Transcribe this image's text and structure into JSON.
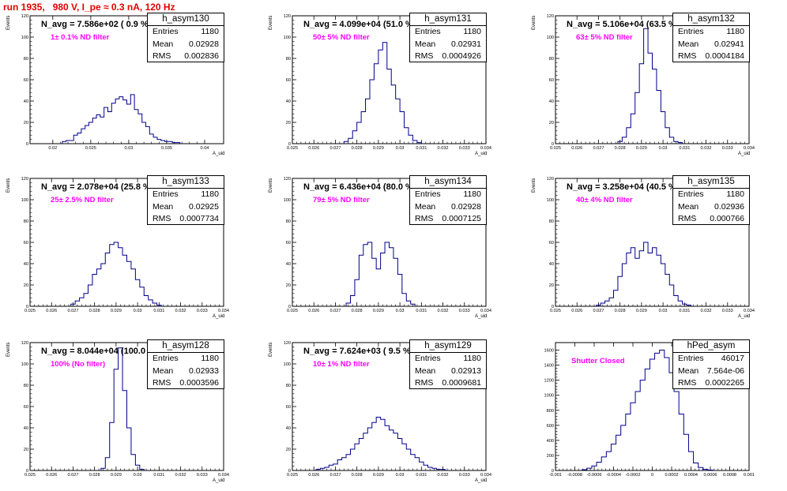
{
  "header": {
    "run_title": "run 1935,   980 V, I_pe ≈ 0.3 nA, 120 Hz"
  },
  "chart_data": [
    {
      "type": "bar",
      "hist_name": "h_asym130",
      "stats": {
        "entries": "1180",
        "mean": "0.02928",
        "rms": "0.002836"
      },
      "n_avg": "N_avg = 7.586e+02 ( 0.9 %)",
      "filter": "1± 0.1% ND filter",
      "filter_color": "#ff00ff",
      "xlabel": "A_uid",
      "ylabel": "Events",
      "xlim": [
        0.017,
        0.0425
      ],
      "ylim": [
        0,
        120
      ],
      "x_ticks": [
        0.02,
        0.025,
        0.03,
        0.035,
        0.04
      ],
      "x_tick_labels": [
        "0.02",
        "0.025",
        "0.03",
        "0.035",
        "0.04"
      ],
      "y_ticks": [
        0,
        20,
        40,
        60,
        80,
        100,
        120
      ],
      "y_tick_labels": [
        "0",
        "20",
        "40",
        "60",
        "80",
        "100",
        "120"
      ],
      "line_color": "#00008b",
      "x": [
        0.0215,
        0.022,
        0.0225,
        0.023,
        0.0235,
        0.024,
        0.0245,
        0.025,
        0.0255,
        0.026,
        0.0265,
        0.027,
        0.0275,
        0.028,
        0.0285,
        0.029,
        0.0295,
        0.03,
        0.0305,
        0.031,
        0.0315,
        0.032,
        0.0325,
        0.033,
        0.0335,
        0.034,
        0.0345,
        0.035,
        0.0355,
        0.036,
        0.0365
      ],
      "values": [
        2,
        3,
        3,
        8,
        10,
        14,
        17,
        20,
        24,
        27,
        25,
        34,
        30,
        38,
        42,
        44,
        41,
        37,
        46,
        32,
        28,
        20,
        16,
        9,
        6,
        4,
        3,
        2,
        2,
        1,
        1
      ]
    },
    {
      "type": "bar",
      "hist_name": "h_asym131",
      "stats": {
        "entries": "1180",
        "mean": "0.02931",
        "rms": "0.0004926"
      },
      "n_avg": "N_avg = 4.099e+04 (51.0 %)",
      "filter": "50± 5% ND filter",
      "filter_color": "#ff00ff",
      "xlabel": "A_uid",
      "ylabel": "Events",
      "xlim": [
        0.025,
        0.034
      ],
      "ylim": [
        0,
        120
      ],
      "x_ticks": [
        0.025,
        0.026,
        0.027,
        0.028,
        0.029,
        0.03,
        0.031,
        0.032,
        0.033,
        0.034
      ],
      "x_tick_labels": [
        "0.025",
        "0.026",
        "0.027",
        "0.028",
        "0.029",
        "0.03",
        "0.031",
        "0.032",
        "0.033",
        "0.034"
      ],
      "y_ticks": [
        0,
        20,
        40,
        60,
        80,
        100,
        120
      ],
      "y_tick_labels": [
        "0",
        "20",
        "40",
        "60",
        "80",
        "100",
        "120"
      ],
      "line_color": "#00008b",
      "x": [
        0.0275,
        0.0277,
        0.0279,
        0.0281,
        0.0283,
        0.0285,
        0.0287,
        0.0289,
        0.0291,
        0.0293,
        0.0295,
        0.0297,
        0.0299,
        0.0301,
        0.0303,
        0.0305,
        0.0307,
        0.0309
      ],
      "values": [
        2,
        5,
        12,
        20,
        30,
        42,
        60,
        75,
        88,
        95,
        70,
        55,
        42,
        30,
        15,
        8,
        3,
        1
      ]
    },
    {
      "type": "bar",
      "hist_name": "h_asym132",
      "stats": {
        "entries": "1180",
        "mean": "0.02941",
        "rms": "0.0004184"
      },
      "n_avg": "N_avg = 5.106e+04 (63.5 %)",
      "filter": "63± 5% ND filter",
      "filter_color": "#ff00ff",
      "xlabel": "A_uid",
      "ylabel": "Events",
      "xlim": [
        0.025,
        0.034
      ],
      "ylim": [
        0,
        120
      ],
      "x_ticks": [
        0.025,
        0.026,
        0.027,
        0.028,
        0.029,
        0.03,
        0.031,
        0.032,
        0.033,
        0.034
      ],
      "x_tick_labels": [
        "0.025",
        "0.026",
        "0.027",
        "0.028",
        "0.029",
        "0.03",
        "0.031",
        "0.032",
        "0.033",
        "0.034"
      ],
      "y_ticks": [
        0,
        20,
        40,
        60,
        80,
        100,
        120
      ],
      "y_tick_labels": [
        "0",
        "20",
        "40",
        "60",
        "80",
        "100",
        "120"
      ],
      "line_color": "#00008b",
      "x": [
        0.028,
        0.0282,
        0.0284,
        0.0286,
        0.0288,
        0.029,
        0.0292,
        0.0294,
        0.0296,
        0.0298,
        0.03,
        0.0302,
        0.0304,
        0.0306,
        0.0308
      ],
      "values": [
        2,
        6,
        15,
        28,
        48,
        75,
        108,
        85,
        70,
        50,
        30,
        15,
        6,
        2,
        1
      ]
    },
    {
      "type": "bar",
      "hist_name": "h_asym133",
      "stats": {
        "entries": "1180",
        "mean": "0.02925",
        "rms": "0.0007734"
      },
      "n_avg": "N_avg = 2.078e+04 (25.8 %)",
      "filter": "25± 2.5% ND filter",
      "filter_color": "#ff00ff",
      "xlabel": "A_uid",
      "ylabel": "Events",
      "xlim": [
        0.025,
        0.034
      ],
      "ylim": [
        0,
        120
      ],
      "x_ticks": [
        0.025,
        0.026,
        0.027,
        0.028,
        0.029,
        0.03,
        0.031,
        0.032,
        0.033,
        0.034
      ],
      "x_tick_labels": [
        "0.025",
        "0.026",
        "0.027",
        "0.028",
        "0.029",
        "0.03",
        "0.031",
        "0.032",
        "0.033",
        "0.034"
      ],
      "y_ticks": [
        0,
        20,
        40,
        60,
        80,
        100,
        120
      ],
      "y_tick_labels": [
        "0",
        "20",
        "40",
        "60",
        "80",
        "100",
        "120"
      ],
      "line_color": "#00008b",
      "x": [
        0.027,
        0.0272,
        0.0274,
        0.0276,
        0.0278,
        0.028,
        0.0282,
        0.0284,
        0.0286,
        0.0288,
        0.029,
        0.0292,
        0.0294,
        0.0296,
        0.0298,
        0.03,
        0.0302,
        0.0304,
        0.0306,
        0.0308,
        0.031
      ],
      "values": [
        2,
        5,
        8,
        12,
        20,
        30,
        35,
        40,
        50,
        58,
        60,
        55,
        48,
        42,
        35,
        25,
        18,
        10,
        6,
        3,
        1
      ]
    },
    {
      "type": "bar",
      "hist_name": "h_asym134",
      "stats": {
        "entries": "1180",
        "mean": "0.02928",
        "rms": "0.0007125"
      },
      "n_avg": "N_avg = 6.436e+04 (80.0 %)",
      "filter": "79± 5% ND filter",
      "filter_color": "#ff00ff",
      "xlabel": "A_uid",
      "ylabel": "Events",
      "xlim": [
        0.025,
        0.034
      ],
      "ylim": [
        0,
        120
      ],
      "x_ticks": [
        0.025,
        0.026,
        0.027,
        0.028,
        0.029,
        0.03,
        0.031,
        0.032,
        0.033,
        0.034
      ],
      "x_tick_labels": [
        "0.025",
        "0.026",
        "0.027",
        "0.028",
        "0.029",
        "0.03",
        "0.031",
        "0.032",
        "0.033",
        "0.034"
      ],
      "y_ticks": [
        0,
        20,
        40,
        60,
        80,
        100,
        120
      ],
      "y_tick_labels": [
        "0",
        "20",
        "40",
        "60",
        "80",
        "100",
        "120"
      ],
      "line_color": "#00008b",
      "x": [
        0.0276,
        0.0278,
        0.028,
        0.0282,
        0.0284,
        0.0286,
        0.0288,
        0.029,
        0.0292,
        0.0294,
        0.0296,
        0.0298,
        0.03,
        0.0302,
        0.0304,
        0.0306
      ],
      "values": [
        3,
        10,
        25,
        48,
        58,
        60,
        45,
        35,
        50,
        60,
        55,
        45,
        30,
        12,
        5,
        2
      ]
    },
    {
      "type": "bar",
      "hist_name": "h_asym135",
      "stats": {
        "entries": "1180",
        "mean": "0.02936",
        "rms": "0.000766"
      },
      "n_avg": "N_avg = 3.258e+04 (40.5 %)",
      "filter": "40± 4% ND filter",
      "filter_color": "#ff00ff",
      "xlabel": "A_uid",
      "ylabel": "Events",
      "xlim": [
        0.025,
        0.034
      ],
      "ylim": [
        0,
        120
      ],
      "x_ticks": [
        0.025,
        0.026,
        0.027,
        0.028,
        0.029,
        0.03,
        0.031,
        0.032,
        0.033,
        0.034
      ],
      "x_tick_labels": [
        "0.025",
        "0.026",
        "0.027",
        "0.028",
        "0.029",
        "0.03",
        "0.031",
        "0.032",
        "0.033",
        "0.034"
      ],
      "y_ticks": [
        0,
        20,
        40,
        60,
        80,
        100,
        120
      ],
      "y_tick_labels": [
        "0",
        "20",
        "40",
        "60",
        "80",
        "100",
        "120"
      ],
      "line_color": "#00008b",
      "x": [
        0.027,
        0.0272,
        0.0274,
        0.0276,
        0.0278,
        0.028,
        0.0282,
        0.0284,
        0.0286,
        0.0288,
        0.029,
        0.0292,
        0.0294,
        0.0296,
        0.0298,
        0.03,
        0.0302,
        0.0304,
        0.0306,
        0.0308,
        0.031,
        0.0312
      ],
      "values": [
        1,
        3,
        5,
        8,
        15,
        28,
        40,
        50,
        55,
        45,
        52,
        60,
        50,
        55,
        48,
        40,
        30,
        20,
        10,
        5,
        2,
        1
      ]
    },
    {
      "type": "bar",
      "hist_name": "h_asym128",
      "stats": {
        "entries": "1180",
        "mean": "0.02933",
        "rms": "0.0003596"
      },
      "n_avg": "N_avg = 8.044e+04 (100.0 %)",
      "filter": "100% (No filter)",
      "filter_color": "#ff00ff",
      "xlabel": "A_uid",
      "ylabel": "Events",
      "xlim": [
        0.025,
        0.034
      ],
      "ylim": [
        0,
        120
      ],
      "x_ticks": [
        0.025,
        0.026,
        0.027,
        0.028,
        0.029,
        0.03,
        0.031,
        0.032,
        0.033,
        0.034
      ],
      "x_tick_labels": [
        "0.025",
        "0.026",
        "0.027",
        "0.028",
        "0.029",
        "0.03",
        "0.031",
        "0.032",
        "0.033",
        "0.034"
      ],
      "y_ticks": [
        0,
        20,
        40,
        60,
        80,
        100,
        120
      ],
      "y_tick_labels": [
        "0",
        "20",
        "40",
        "60",
        "80",
        "100",
        "120"
      ],
      "line_color": "#00008b",
      "x": [
        0.0284,
        0.0286,
        0.0288,
        0.029,
        0.0292,
        0.0294,
        0.0296,
        0.0298,
        0.03,
        0.0302
      ],
      "values": [
        2,
        12,
        45,
        95,
        115,
        75,
        40,
        15,
        5,
        1
      ]
    },
    {
      "type": "bar",
      "hist_name": "h_asym129",
      "stats": {
        "entries": "1180",
        "mean": "0.02913",
        "rms": "0.0009681"
      },
      "n_avg": "N_avg = 7.624e+03 ( 9.5 %)",
      "filter": "10± 1% ND filter",
      "filter_color": "#ff00ff",
      "xlabel": "A_uid",
      "ylabel": "Events",
      "xlim": [
        0.025,
        0.034
      ],
      "ylim": [
        0,
        120
      ],
      "x_ticks": [
        0.025,
        0.026,
        0.027,
        0.028,
        0.029,
        0.03,
        0.031,
        0.032,
        0.033,
        0.034
      ],
      "x_tick_labels": [
        "0.025",
        "0.026",
        "0.027",
        "0.028",
        "0.029",
        "0.03",
        "0.031",
        "0.032",
        "0.033",
        "0.034"
      ],
      "y_ticks": [
        0,
        20,
        40,
        60,
        80,
        100,
        120
      ],
      "y_tick_labels": [
        "0",
        "20",
        "40",
        "60",
        "80",
        "100",
        "120"
      ],
      "line_color": "#00008b",
      "x": [
        0.0262,
        0.0264,
        0.0266,
        0.0268,
        0.027,
        0.0272,
        0.0274,
        0.0276,
        0.0278,
        0.028,
        0.0282,
        0.0284,
        0.0286,
        0.0288,
        0.029,
        0.0292,
        0.0294,
        0.0296,
        0.0298,
        0.03,
        0.0302,
        0.0304,
        0.0306,
        0.0308,
        0.031,
        0.0312,
        0.0314,
        0.0316,
        0.0318,
        0.032
      ],
      "values": [
        1,
        2,
        3,
        5,
        6,
        10,
        12,
        15,
        20,
        25,
        30,
        35,
        40,
        45,
        50,
        48,
        42,
        38,
        35,
        30,
        25,
        20,
        15,
        12,
        8,
        5,
        3,
        2,
        1,
        1
      ]
    },
    {
      "type": "bar",
      "hist_name": "hPed_asym",
      "stats": {
        "entries": "46017",
        "mean": "7.564e-06",
        "rms": "0.0002265"
      },
      "n_avg": "",
      "filter": "Shutter Closed",
      "filter_color": "#ff00ff",
      "xlabel": "",
      "ylabel": "",
      "xlim": [
        -0.001,
        0.001
      ],
      "ylim": [
        0,
        1700
      ],
      "x_ticks": [
        -0.001,
        -0.0008,
        -0.0006,
        -0.0004,
        -0.0002,
        0,
        0.0002,
        0.0004,
        0.0006,
        0.0008,
        0.001
      ],
      "x_tick_labels": [
        "-0.001",
        "-0.0008",
        "-0.0006",
        "-0.0004",
        "-0.0002",
        "0",
        "0.0002",
        "0.0004",
        "0.0006",
        "0.0008",
        "0.001"
      ],
      "y_ticks": [
        0,
        200,
        400,
        600,
        800,
        1000,
        1200,
        1400,
        1600
      ],
      "y_tick_labels": [
        "0",
        "200",
        "400",
        "600",
        "800",
        "1000",
        "1200",
        "1400",
        "1600"
      ],
      "line_color": "#00008b",
      "x": [
        -0.0007,
        -0.00065,
        -0.0006,
        -0.00055,
        -0.0005,
        -0.00045,
        -0.0004,
        -0.00035,
        -0.0003,
        -0.00025,
        -0.0002,
        -0.00015,
        -0.0001,
        -5e-05,
        0.0,
        5e-05,
        0.0001,
        0.00015,
        0.0002,
        0.00025,
        0.0003,
        0.00035,
        0.0004,
        0.00045,
        0.0005,
        0.00055,
        0.0006
      ],
      "values": [
        10,
        30,
        60,
        110,
        180,
        250,
        350,
        470,
        600,
        750,
        900,
        1050,
        1200,
        1350,
        1480,
        1560,
        1600,
        1500,
        1300,
        1050,
        750,
        480,
        250,
        100,
        40,
        15,
        5
      ]
    }
  ]
}
